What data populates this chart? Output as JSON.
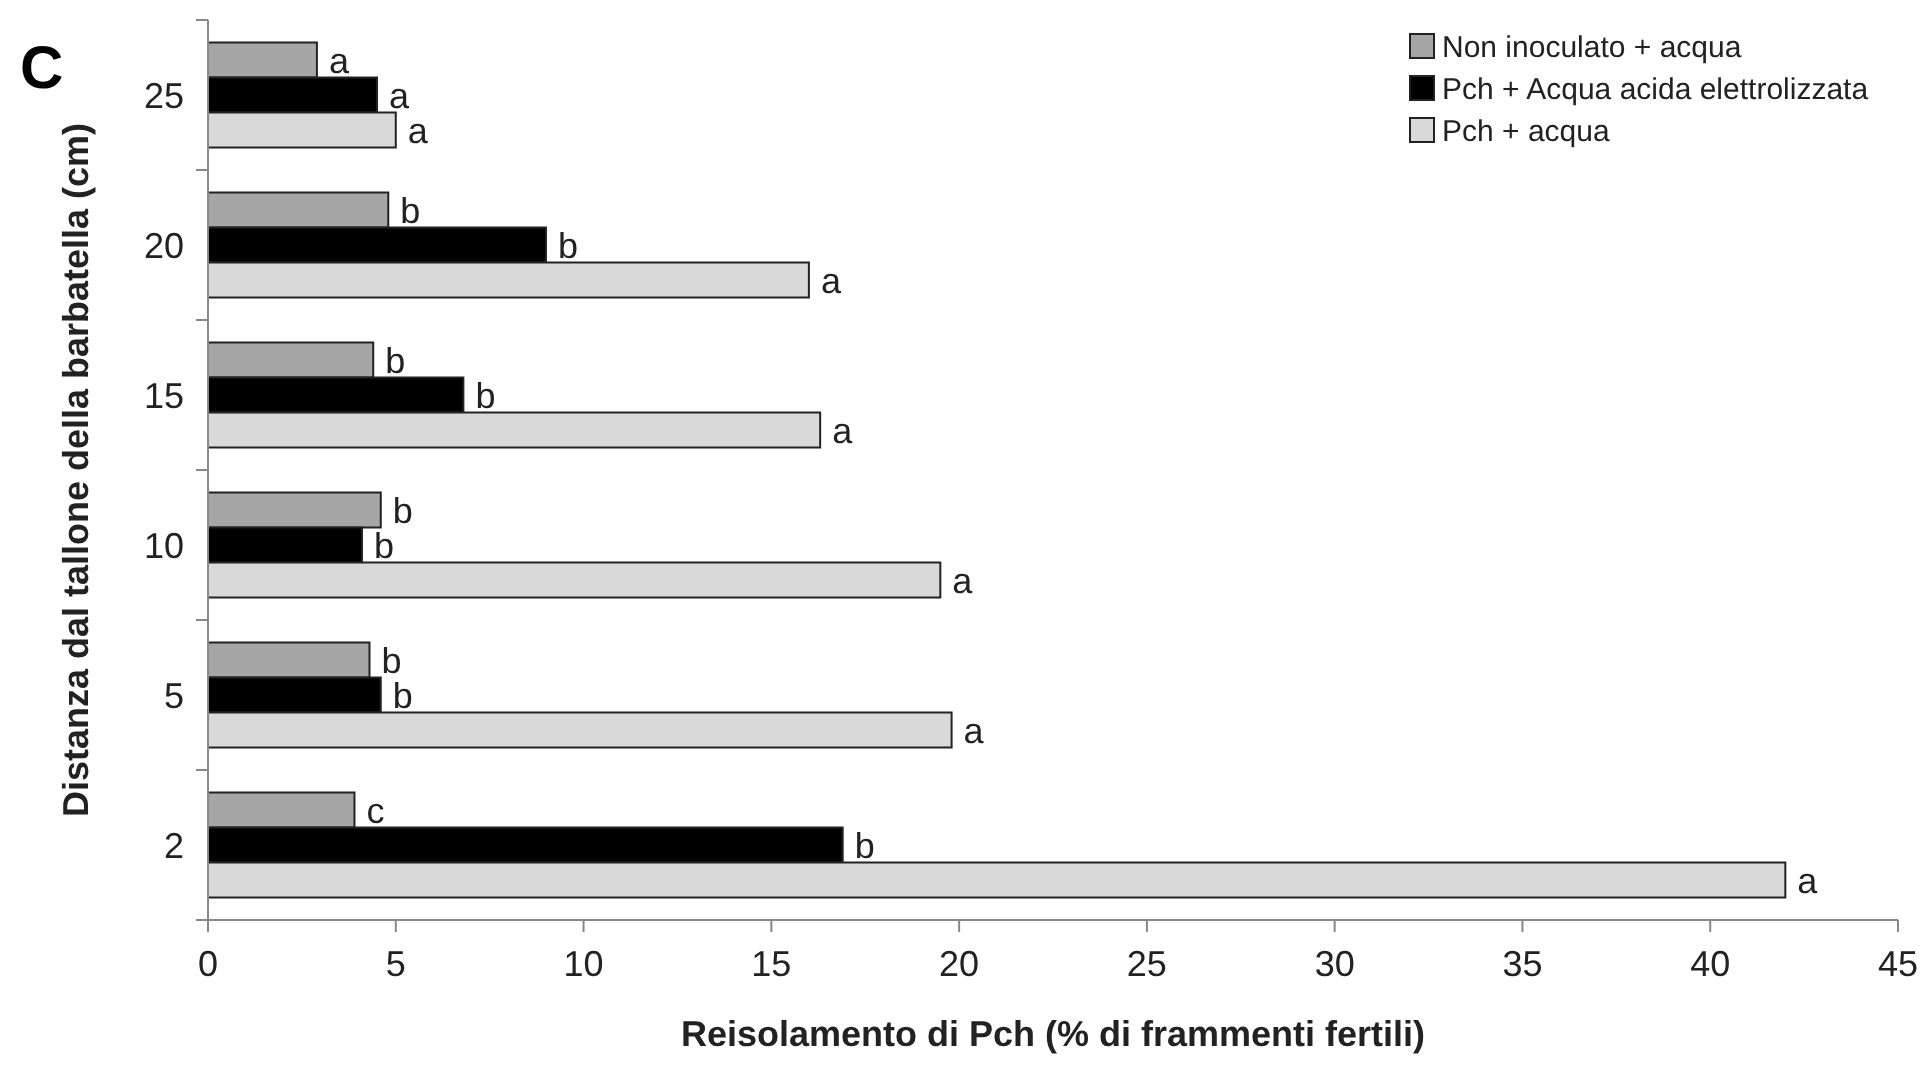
{
  "chart_data": {
    "type": "bar",
    "orientation": "horizontal",
    "title": "C",
    "xlabel": "Reisolamento di Pch (% di frammenti fertili)",
    "ylabel": "Distanza dal tallone della barbatella (cm)",
    "categories": [
      "25",
      "20",
      "15",
      "10",
      "5",
      "2"
    ],
    "series": [
      {
        "name": "Non inoculato + acqua",
        "color": "#a6a6a6",
        "values": [
          2.9,
          4.8,
          4.4,
          4.6,
          4.3,
          3.9
        ],
        "value_labels": [
          "a",
          "b",
          "b",
          "b",
          "b",
          "c"
        ]
      },
      {
        "name": "Pch + Acqua acida elettrolizzata",
        "color": "#000000",
        "values": [
          4.5,
          9.0,
          6.8,
          4.1,
          4.6,
          16.9
        ],
        "value_labels": [
          "a",
          "b",
          "b",
          "b",
          "b",
          "b"
        ]
      },
      {
        "name": "Pch + acqua",
        "color": "#d9d9d9",
        "values": [
          5.0,
          16.0,
          16.3,
          19.5,
          19.8,
          42.0
        ],
        "value_labels": [
          "a",
          "a",
          "a",
          "a",
          "a",
          "a"
        ]
      }
    ],
    "xlim": [
      0,
      45
    ],
    "xticks": [
      0,
      5,
      10,
      15,
      20,
      25,
      30,
      35,
      40,
      45
    ],
    "grid": false,
    "legend": "top right"
  }
}
